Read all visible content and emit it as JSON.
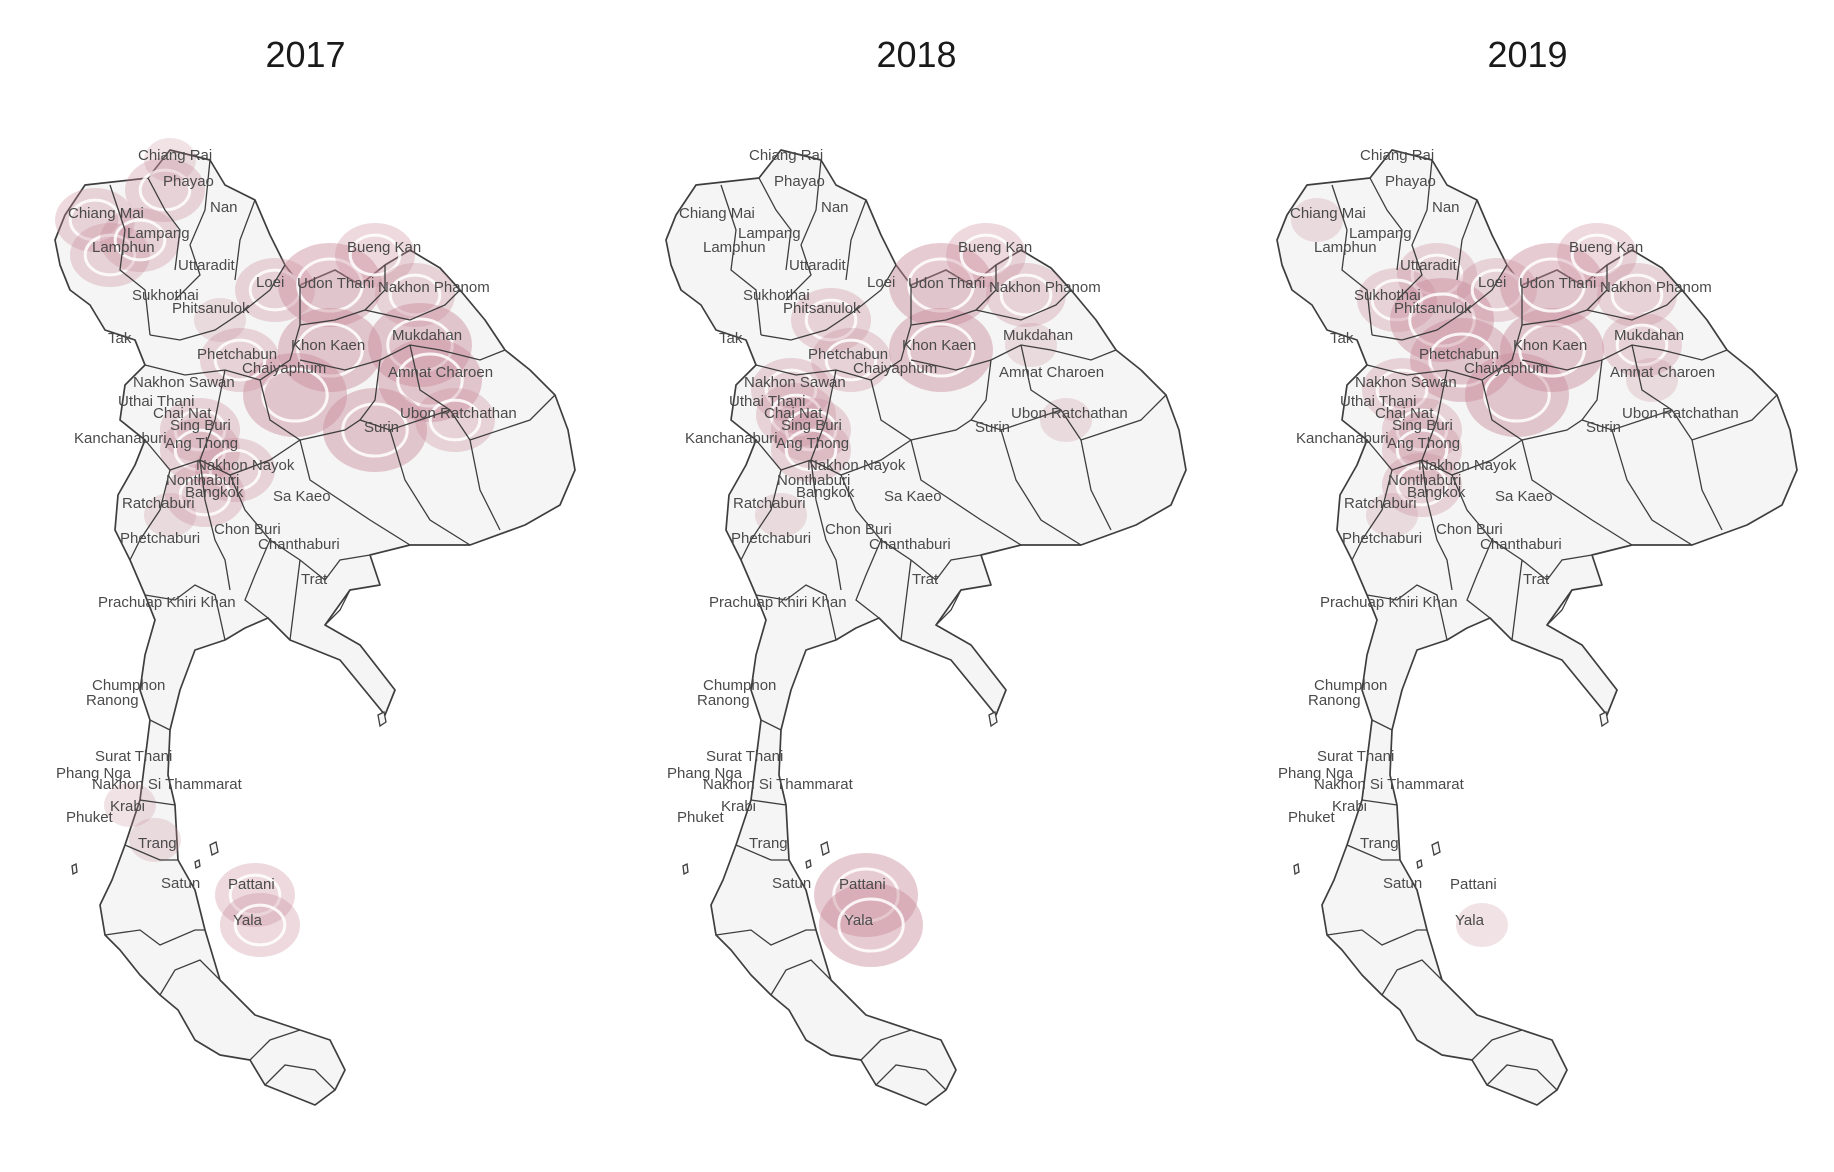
{
  "panels": [
    {
      "title": "2017",
      "hotspots": [
        {
          "province": "Chiang Mai",
          "level": 2
        },
        {
          "province": "Lamphun",
          "level": 2
        },
        {
          "province": "Lampang",
          "level": 2
        },
        {
          "province": "Phayao",
          "level": 2
        },
        {
          "province": "Chiang Rai",
          "level": 1
        },
        {
          "province": "Loei",
          "level": 2
        },
        {
          "province": "Udon Thani",
          "level": 3
        },
        {
          "province": "Bueng Kan",
          "level": 2
        },
        {
          "province": "Nakhon Phanom",
          "level": 2
        },
        {
          "province": "Khon Kaen",
          "level": 3
        },
        {
          "province": "Chaiyaphum",
          "level": 3
        },
        {
          "province": "Mukdahan",
          "level": 3
        },
        {
          "province": "Amnat Charoen",
          "level": 3
        },
        {
          "province": "Ubon Ratchathan",
          "level": 2
        },
        {
          "province": "Surin",
          "level": 3
        },
        {
          "province": "Phetchabun",
          "level": 2
        },
        {
          "province": "Phitsanulok",
          "level": 1
        },
        {
          "province": "Sing Buri",
          "level": 2
        },
        {
          "province": "Ang Thong",
          "level": 2
        },
        {
          "province": "Nakhon Nayok",
          "level": 2
        },
        {
          "province": "Bangkok",
          "level": 2
        },
        {
          "province": "Ratchaburi",
          "level": 1
        },
        {
          "province": "Krabi",
          "level": 1
        },
        {
          "province": "Trang",
          "level": 1
        },
        {
          "province": "Pattani",
          "level": 2
        },
        {
          "province": "Yala",
          "level": 2
        }
      ]
    },
    {
      "title": "2018",
      "hotspots": [
        {
          "province": "Udon Thani",
          "level": 3
        },
        {
          "province": "Bueng Kan",
          "level": 2
        },
        {
          "province": "Nakhon Phanom",
          "level": 2
        },
        {
          "province": "Khon Kaen",
          "level": 3
        },
        {
          "province": "Mukdahan",
          "level": 1
        },
        {
          "province": "Ubon Ratchathan",
          "level": 1
        },
        {
          "province": "Phitsanulok",
          "level": 2
        },
        {
          "province": "Phetchabun",
          "level": 2
        },
        {
          "province": "Nakhon Sawan",
          "level": 2
        },
        {
          "province": "Chai Nat",
          "level": 2
        },
        {
          "province": "Sing Buri",
          "level": 2
        },
        {
          "province": "Ang Thong",
          "level": 2
        },
        {
          "province": "Ratchaburi",
          "level": 1
        },
        {
          "province": "Pattani",
          "level": 3
        },
        {
          "province": "Yala",
          "level": 3
        }
      ]
    },
    {
      "title": "2019",
      "hotspots": [
        {
          "province": "Chiang Mai",
          "level": 1
        },
        {
          "province": "Uttaradit",
          "level": 2
        },
        {
          "province": "Sukhothai",
          "level": 2
        },
        {
          "province": "Phitsanulok",
          "level": 3
        },
        {
          "province": "Phetchabun",
          "level": 3
        },
        {
          "province": "Nakhon Sawan",
          "level": 2
        },
        {
          "province": "Sing Buri",
          "level": 2
        },
        {
          "province": "Ang Thong",
          "level": 2
        },
        {
          "province": "Nonthaburi",
          "level": 2
        },
        {
          "province": "Chaiyaphum",
          "level": 3
        },
        {
          "province": "Khon Kaen",
          "level": 3
        },
        {
          "province": "Loei",
          "level": 2
        },
        {
          "province": "Udon Thani",
          "level": 3
        },
        {
          "province": "Bueng Kan",
          "level": 2
        },
        {
          "province": "Nakhon Phanom",
          "level": 2
        },
        {
          "province": "Mukdahan",
          "level": 2
        },
        {
          "province": "Amnat Charoen",
          "level": 1
        },
        {
          "province": "Ratchaburi",
          "level": 1
        },
        {
          "province": "Yala",
          "level": 1
        }
      ]
    }
  ],
  "province_labels": [
    "Chiang Rai",
    "Phayao",
    "Nan",
    "Chiang Mai",
    "Lampang",
    "Lamphun",
    "Uttaradit",
    "Sukhothai",
    "Phitsanulok",
    "Tak",
    "Loei",
    "Udon Thani",
    "Bueng Kan",
    "Nakhon Phanom",
    "Phetchabun",
    "Khon Kaen",
    "Chaiyaphum",
    "Mukdahan",
    "Amnat Charoen",
    "Nakhon Sawan",
    "Uthai Thani",
    "Chai Nat",
    "Sing Buri",
    "Ang Thong",
    "Kanchanaburi",
    "Surin",
    "Ubon Ratchathan",
    "Nakhon Nayok",
    "Nonthaburi",
    "Bangkok",
    "Ratchaburi",
    "Sa Kaeo",
    "Chon Buri",
    "Chanthaburi",
    "Phetchaburi",
    "Trat",
    "Prachuap Khiri Khan",
    "Chumphon",
    "Ranong",
    "Surat Thani",
    "Phang Nga",
    "Nakhon Si Thammarat",
    "Krabi",
    "Phuket",
    "Trang",
    "Satun",
    "Pattani",
    "Yala"
  ],
  "colors": {
    "density": "#c98b9c",
    "land": "#f5f5f5",
    "border": "#3e3e3e",
    "contour": "#ffffff"
  }
}
